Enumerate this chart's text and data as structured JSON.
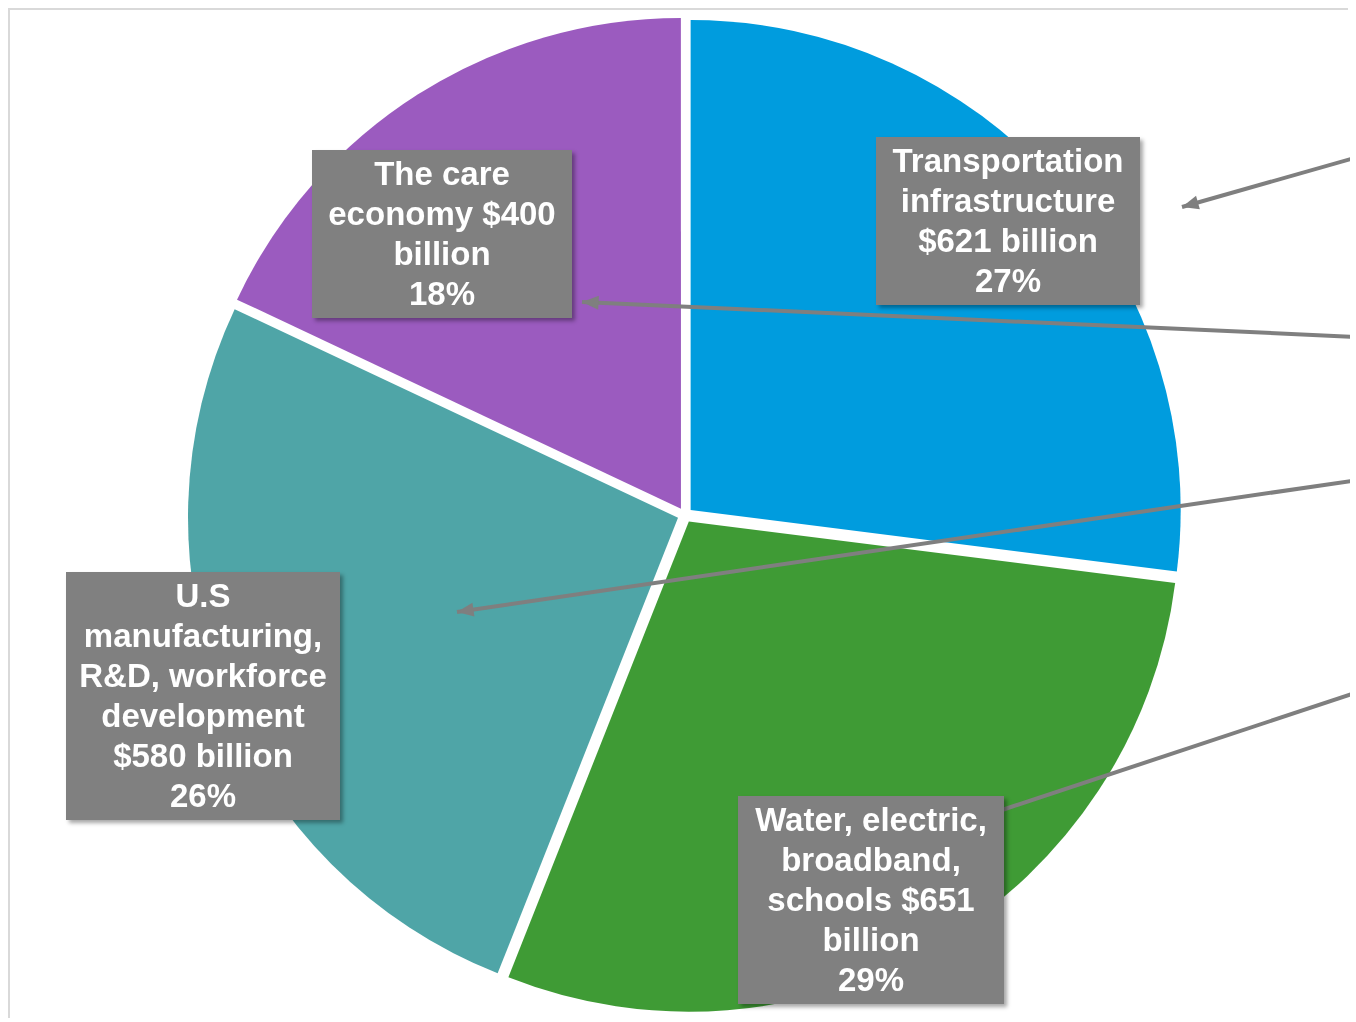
{
  "chart_data": {
    "type": "pie",
    "categories": [
      "Transportation infrastructure",
      "Water, electric, broadband, schools",
      "U.S manufacturing, R&D, workforce development",
      "The care economy"
    ],
    "values": [
      27,
      29,
      26,
      18
    ],
    "colors": [
      "#009cde",
      "#3f9b35",
      "#4fa5a7",
      "#9b5bbf"
    ],
    "value_labels": [
      "$621 billion\n27%",
      "$651 billion\n29%",
      "$580 billion\n26%",
      "$400 billion\n18%"
    ],
    "legend": false
  }
}
